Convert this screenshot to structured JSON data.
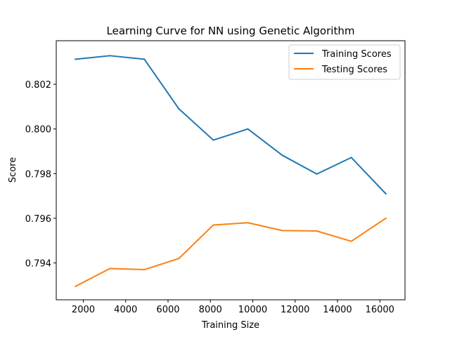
{
  "chart_data": {
    "type": "line",
    "title": "Learning Curve for NN using Genetic Algorithm",
    "xlabel": "Training Size",
    "ylabel": "Score",
    "x": [
      1628,
      3256,
      4884,
      6512,
      8140,
      9768,
      11396,
      13024,
      14652,
      16280
    ],
    "xlim": [
      723,
      17187
    ],
    "ylim": [
      0.79235,
      0.80395
    ],
    "xticks": [
      2000,
      4000,
      6000,
      8000,
      10000,
      12000,
      14000,
      16000
    ],
    "xtick_labels": [
      "2000",
      "4000",
      "6000",
      "8000",
      "10000",
      "12000",
      "14000",
      "16000"
    ],
    "yticks": [
      0.794,
      0.796,
      0.798,
      0.8,
      0.802
    ],
    "ytick_labels": [
      "0.794",
      "0.796",
      "0.798",
      "0.800",
      "0.802"
    ],
    "grid": false,
    "legend_position": "upper right",
    "series": [
      {
        "name": "Training Scores",
        "color": "#1f77b4",
        "values": [
          0.80312,
          0.80328,
          0.80312,
          0.8009,
          0.7995,
          0.8,
          0.79882,
          0.79798,
          0.79872,
          0.7971
        ]
      },
      {
        "name": "Testing Scores",
        "color": "#ff7f0e",
        "values": [
          0.79295,
          0.79375,
          0.7937,
          0.7942,
          0.7957,
          0.7958,
          0.79545,
          0.79543,
          0.79497,
          0.796
        ]
      }
    ]
  }
}
